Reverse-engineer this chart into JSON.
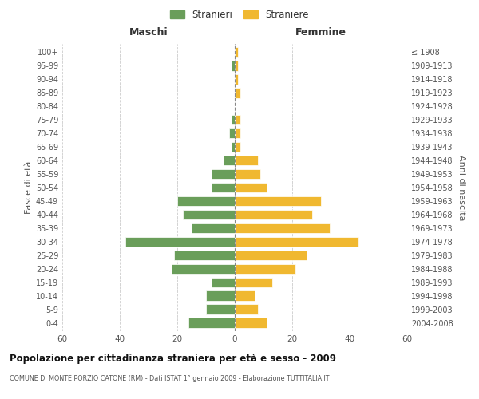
{
  "age_groups": [
    "0-4",
    "5-9",
    "10-14",
    "15-19",
    "20-24",
    "25-29",
    "30-34",
    "35-39",
    "40-44",
    "45-49",
    "50-54",
    "55-59",
    "60-64",
    "65-69",
    "70-74",
    "75-79",
    "80-84",
    "85-89",
    "90-94",
    "95-99",
    "100+"
  ],
  "birth_years": [
    "2004-2008",
    "1999-2003",
    "1994-1998",
    "1989-1993",
    "1984-1988",
    "1979-1983",
    "1974-1978",
    "1969-1973",
    "1964-1968",
    "1959-1963",
    "1954-1958",
    "1949-1953",
    "1944-1948",
    "1939-1943",
    "1934-1938",
    "1929-1933",
    "1924-1928",
    "1919-1923",
    "1914-1918",
    "1909-1913",
    "≤ 1908"
  ],
  "maschi": [
    16,
    10,
    10,
    8,
    22,
    21,
    38,
    15,
    18,
    20,
    8,
    8,
    4,
    1,
    2,
    1,
    0,
    0,
    0,
    1,
    0
  ],
  "femmine": [
    11,
    8,
    7,
    13,
    21,
    25,
    43,
    33,
    27,
    30,
    11,
    9,
    8,
    2,
    2,
    2,
    0,
    2,
    1,
    1,
    1
  ],
  "color_maschi": "#6a9e5a",
  "color_femmine": "#f0b830",
  "xlim": 60,
  "title": "Popolazione per cittadinanza straniera per età e sesso - 2009",
  "subtitle": "COMUNE DI MONTE PORZIO CATONE (RM) - Dati ISTAT 1° gennaio 2009 - Elaborazione TUTTITALIA.IT",
  "xlabel_left": "Maschi",
  "xlabel_right": "Femmine",
  "ylabel_left": "Fasce di età",
  "ylabel_right": "Anni di nascita",
  "legend_maschi": "Stranieri",
  "legend_femmine": "Straniere",
  "background_color": "#ffffff",
  "grid_color": "#cccccc"
}
